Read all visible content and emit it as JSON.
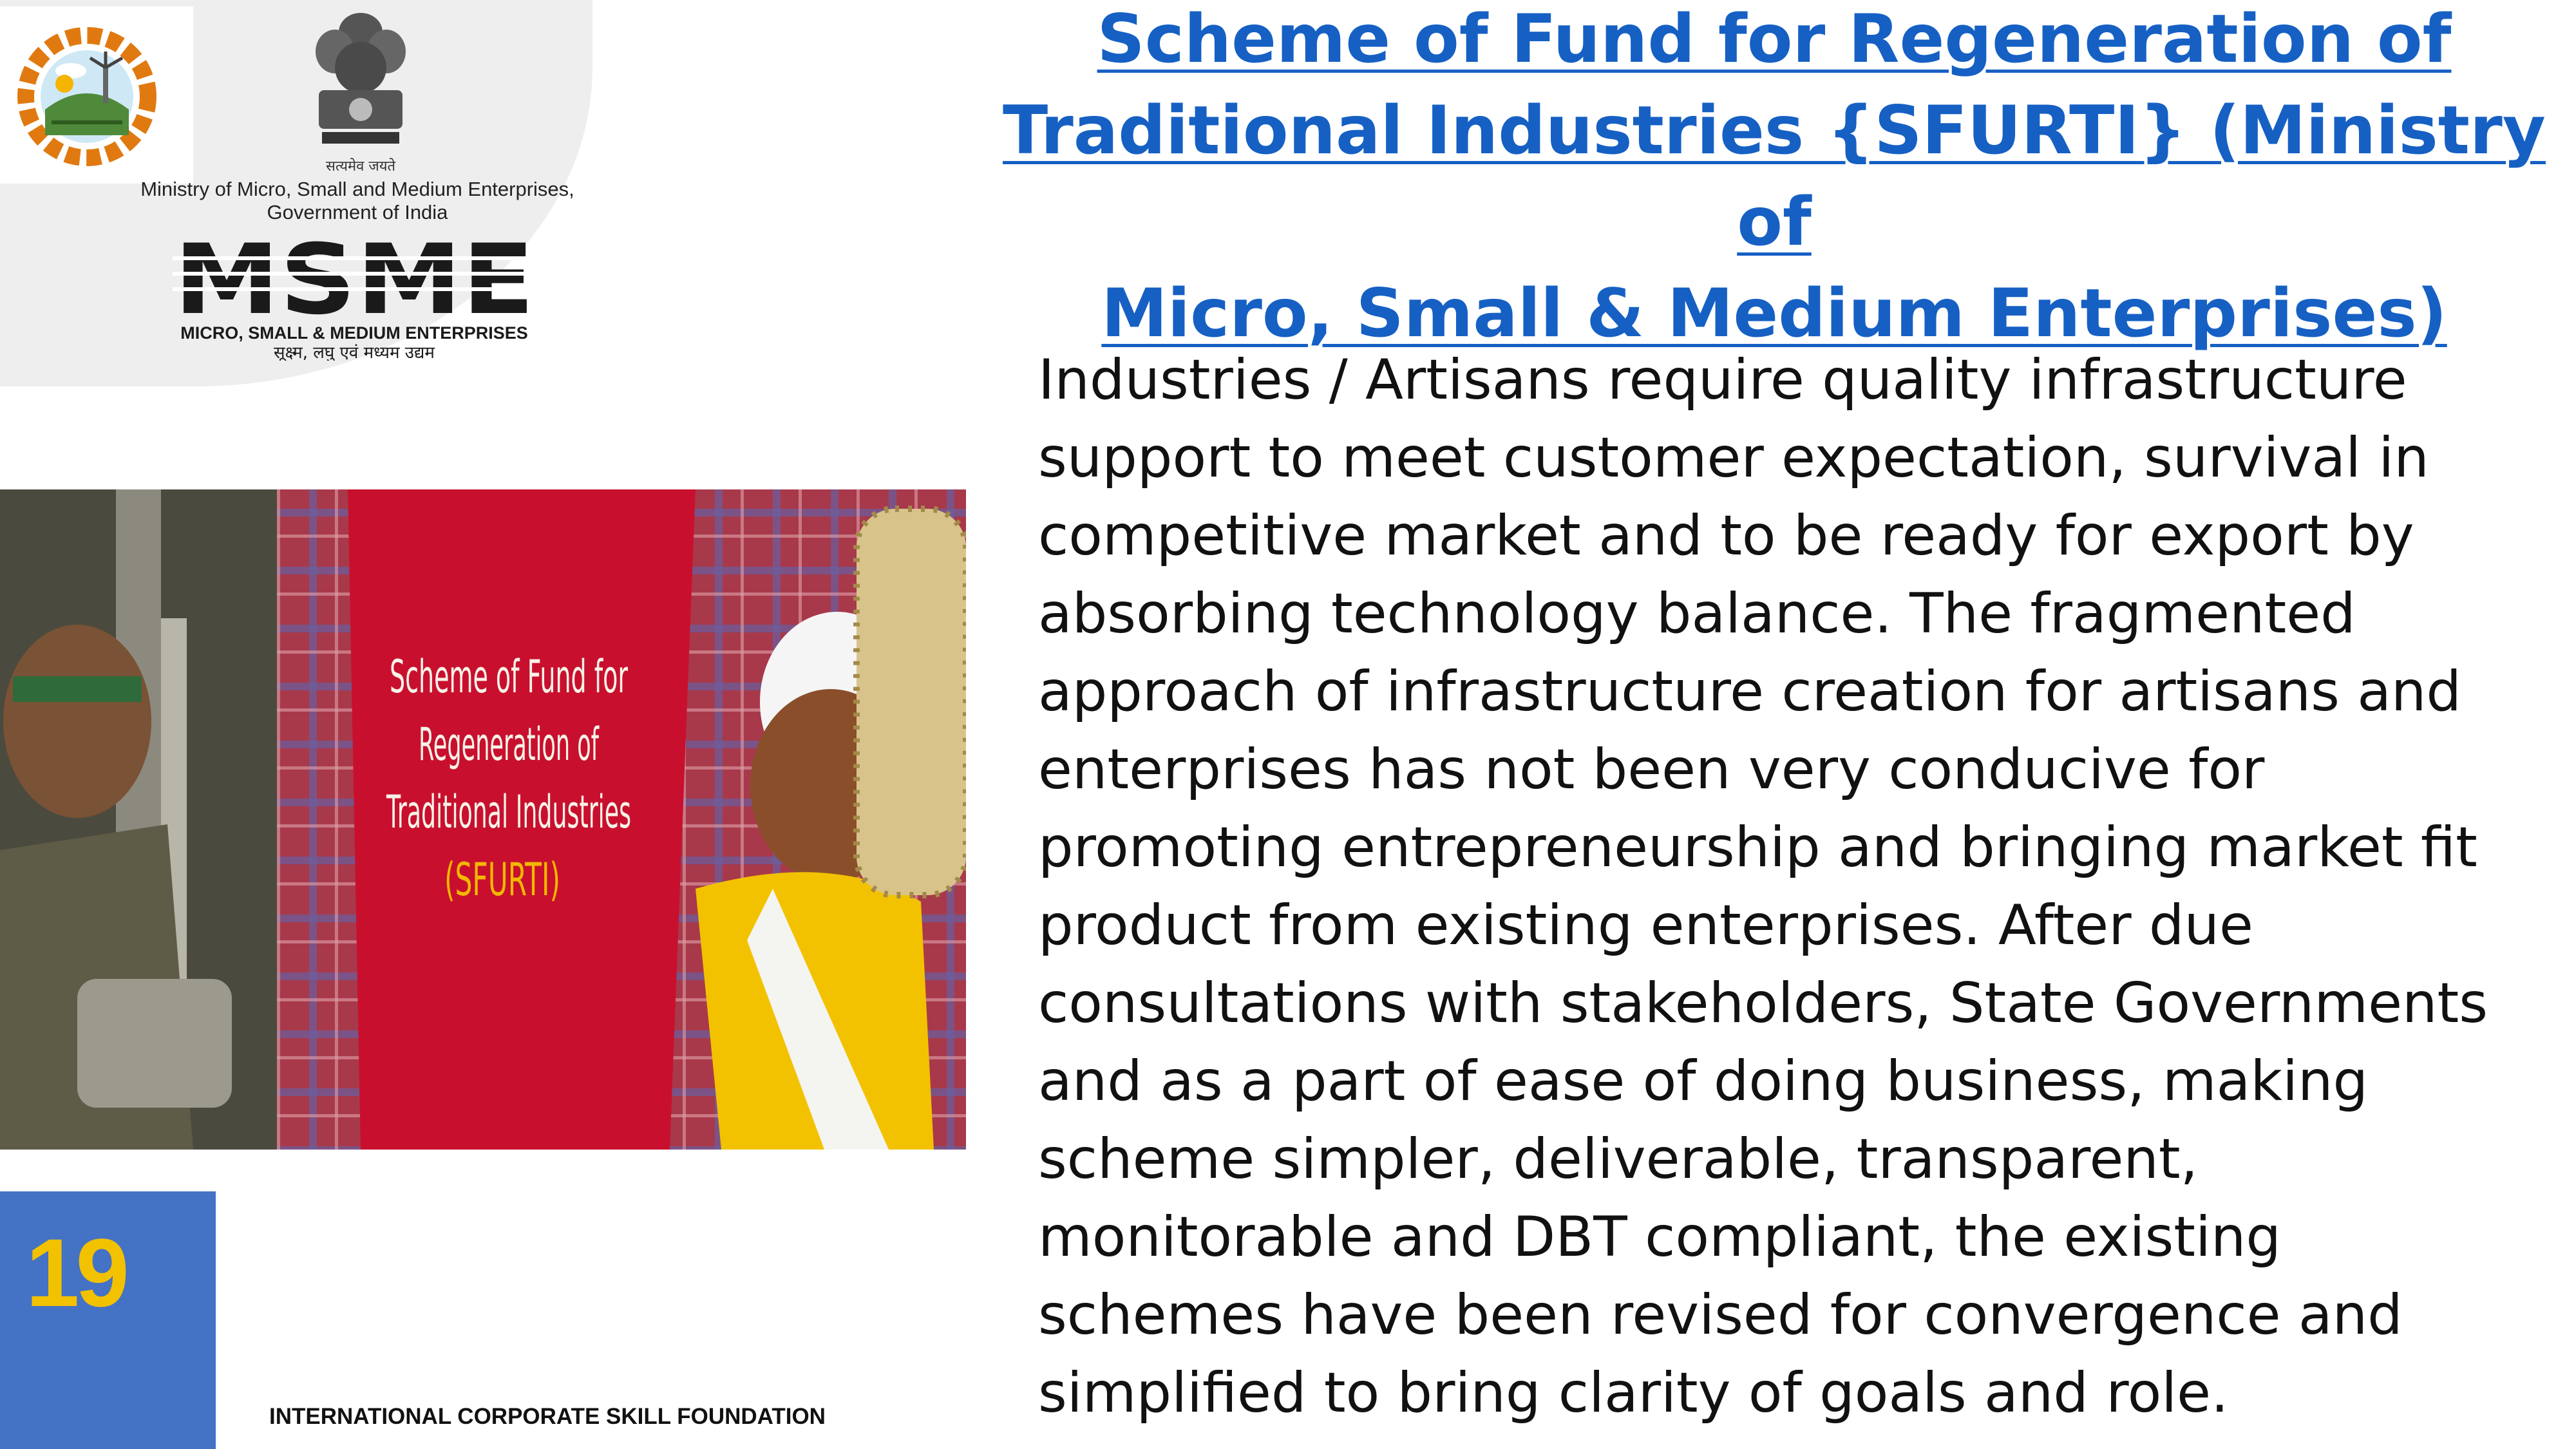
{
  "ministry_caption": [
    "Ministry of Micro, Small and Medium Enterprises,",
    "Government of India"
  ],
  "msme_logo": {
    "word": "MSME",
    "subtitle": "MICRO, SMALL & MEDIUM ENTERPRISES",
    "hindi": "सूक्ष्म, लघु एवं मध्यम उद्यम",
    "emblem_text": "सत्यमेव जयते"
  },
  "photo_banner": {
    "lines": [
      "Scheme of Fund for",
      "Regeneration of",
      "Traditional Industries",
      "(SFURTI)"
    ]
  },
  "title_lines": [
    "Scheme of Fund for Regeneration of",
    "Traditional Industries {SFURTI} (Ministry of",
    "Micro, Small & Medium Enterprises)"
  ],
  "body_lines": [
    "Industries / Artisans require quality infrastructure",
    "support to meet customer expectation, survival in",
    "competitive market and to be ready for export by",
    "absorbing technology balance. The fragmented",
    "approach of infrastructure creation for artisans and",
    "enterprises has not been very conducive for",
    "promoting entrepreneurship and bringing market fit",
    "product from existing enterprises. After due",
    "consultations with stakeholders, State Governments",
    "and as a part of ease of doing business, making",
    "scheme simpler, deliverable, transparent,",
    "monitorable and DBT compliant, the existing",
    "schemes have been revised for convergence and",
    "simplified to bring clarity of goals and role."
  ],
  "slide_number": "19",
  "footer": "INTERNATIONAL CORPORATE SKILL FOUNDATION",
  "colors": {
    "title": "#1660c4",
    "page_box": "#4472c4",
    "page_number": "#f2c100",
    "banner": "#c8102e"
  }
}
